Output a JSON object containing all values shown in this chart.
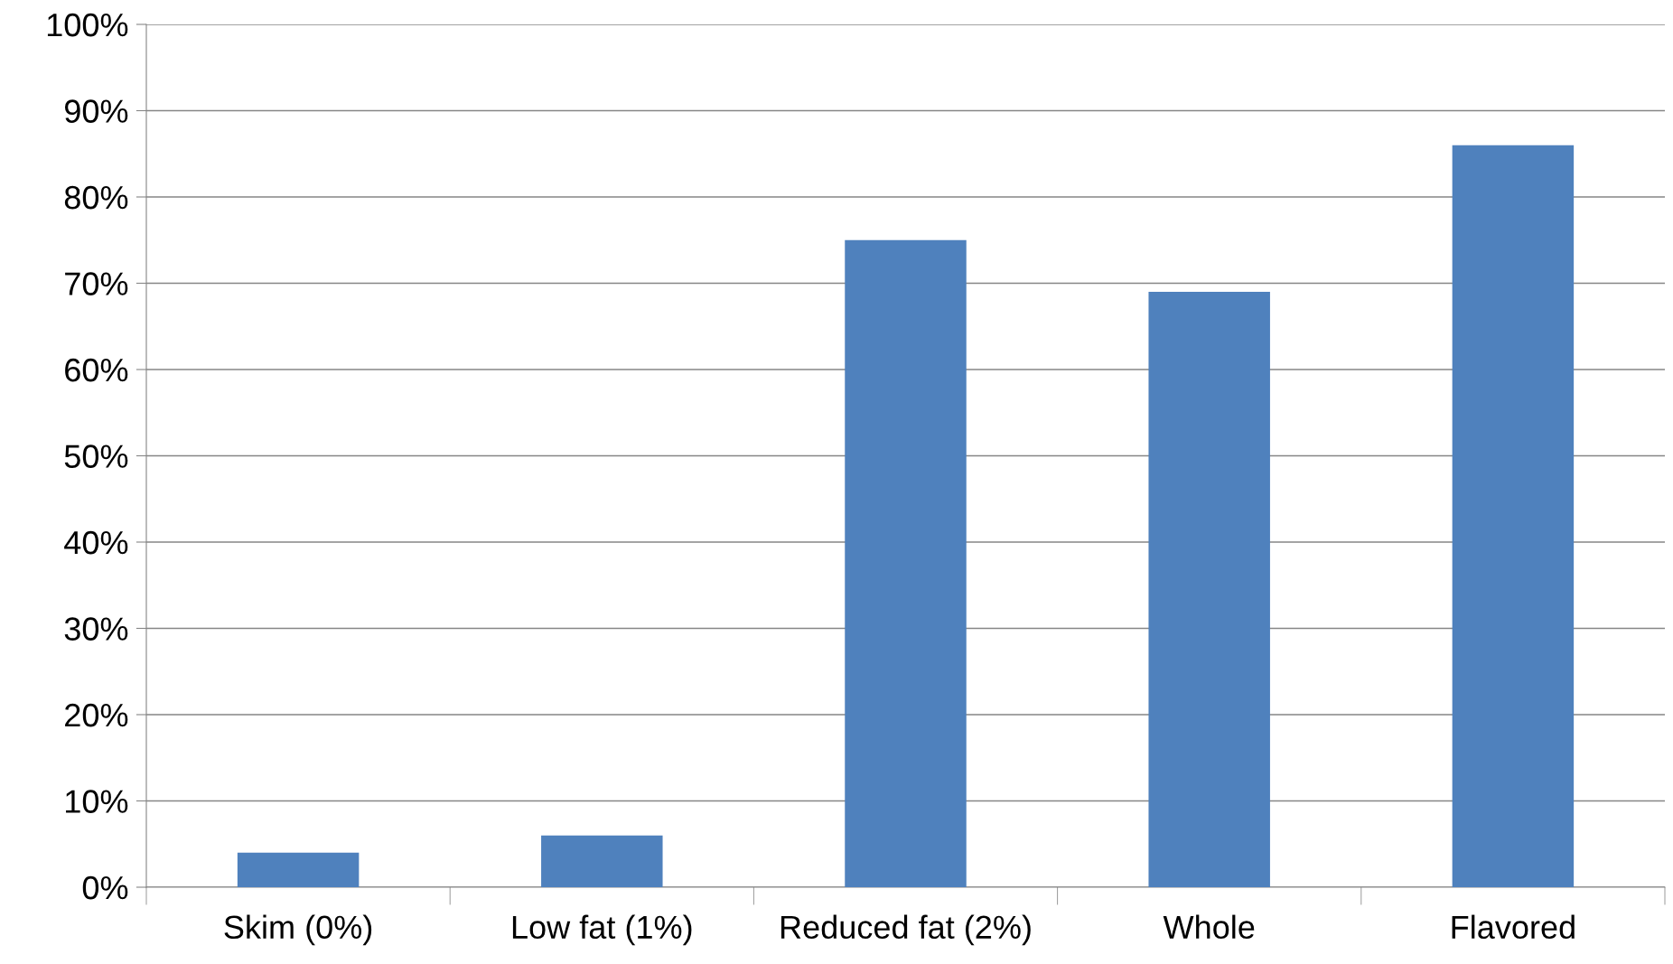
{
  "chart_data": {
    "type": "bar",
    "categories": [
      "Skim (0%)",
      "Low fat (1%)",
      "Reduced fat (2%)",
      "Whole",
      "Flavored"
    ],
    "values": [
      4,
      6,
      75,
      69,
      86
    ],
    "color": "#4f81bd",
    "ylim": [
      0,
      100
    ],
    "yticks": [
      {
        "value": 0,
        "label": "0%"
      },
      {
        "value": 10,
        "label": "10%"
      },
      {
        "value": 20,
        "label": "20%"
      },
      {
        "value": 30,
        "label": "30%"
      },
      {
        "value": 40,
        "label": "40%"
      },
      {
        "value": 50,
        "label": "50%"
      },
      {
        "value": 60,
        "label": "60%"
      },
      {
        "value": 70,
        "label": "70%"
      },
      {
        "value": 80,
        "label": "80%"
      },
      {
        "value": 90,
        "label": "90%"
      },
      {
        "value": 100,
        "label": "100%"
      }
    ],
    "grid": "y",
    "legend": false
  }
}
